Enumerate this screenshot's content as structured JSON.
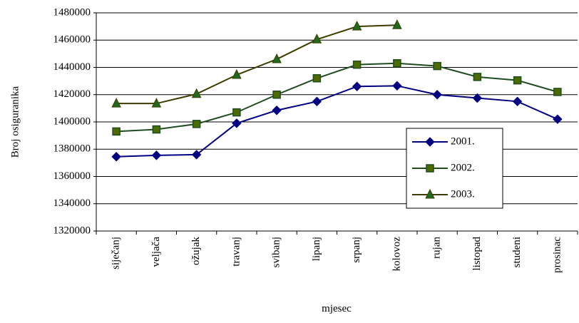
{
  "chart_data": {
    "type": "line",
    "y_label": "Broj osiguranika",
    "x_label": "mjesec",
    "categories": [
      "siječanj",
      "veljača",
      "ožujak",
      "travanj",
      "svibanj",
      "lipanj",
      "srpanj",
      "kolovoz",
      "rujan",
      "listopad",
      "studeni",
      "prosinac"
    ],
    "series": [
      {
        "name": "2001.",
        "color": "#000080",
        "marker": "diamond",
        "values": [
          1374500,
          1375500,
          1376000,
          1399000,
          1408500,
          1415000,
          1426000,
          1426500,
          1420000,
          1417500,
          1415000,
          1402000
        ]
      },
      {
        "name": "2002.",
        "color": "#1f4d1f",
        "marker": "square",
        "values": [
          1393000,
          1394500,
          1398500,
          1407000,
          1420000,
          1432000,
          1442000,
          1443000,
          1441000,
          1433000,
          1430500,
          1422000
        ]
      },
      {
        "name": "2003.",
        "color": "#3d3d00",
        "marker": "triangle",
        "values": [
          1413500,
          1413500,
          1420500,
          1434500,
          1446000,
          1460500,
          1470000,
          1471000,
          null,
          null,
          null,
          null
        ]
      }
    ],
    "ylim": [
      1320000,
      1480000
    ],
    "yticks": [
      1320000,
      1340000,
      1360000,
      1380000,
      1400000,
      1420000,
      1440000,
      1460000,
      1480000
    ],
    "grid": true
  }
}
